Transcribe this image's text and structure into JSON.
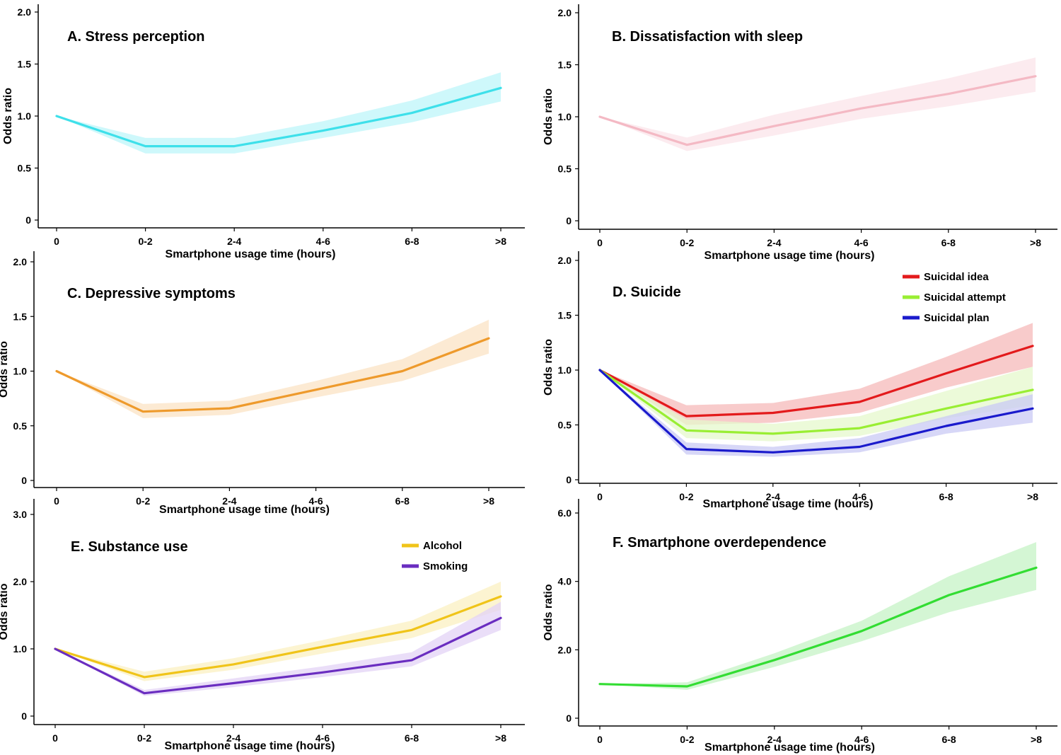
{
  "chart_data": [
    {
      "type": "line",
      "title": "A. Stress perception",
      "xlabel": "Smartphone usage time (hours)",
      "ylabel": "Odds ratio",
      "x": [
        "0",
        "0-2",
        "2-4",
        "4-6",
        "6-8",
        ">8"
      ],
      "yticks": [
        "0",
        "0.5",
        "1.0",
        "1.5",
        "2.0"
      ],
      "ylim": [
        0,
        2.0
      ],
      "legend": "none",
      "grid": false,
      "series": [
        {
          "color": "#3ee0ea",
          "band_color": "#bdf6fa",
          "values": [
            1.0,
            0.71,
            0.71,
            0.86,
            1.03,
            1.27
          ],
          "lower": [
            1.0,
            0.64,
            0.64,
            0.79,
            0.94,
            1.14
          ],
          "upper": [
            1.0,
            0.79,
            0.79,
            0.95,
            1.15,
            1.42
          ]
        }
      ]
    },
    {
      "type": "line",
      "title": "B. Dissatisfaction with sleep",
      "xlabel": "Smartphone usage time (hours)",
      "ylabel": "Odds ratio",
      "x": [
        "0",
        "0-2",
        "2-4",
        "4-6",
        "6-8",
        ">8"
      ],
      "yticks": [
        "0",
        "0.5",
        "1.0",
        "1.5",
        "2.0"
      ],
      "ylim": [
        0,
        2.0
      ],
      "legend": "none",
      "grid": false,
      "series": [
        {
          "color": "#f4b9c4",
          "band_color": "#fbe4e9",
          "values": [
            1.0,
            0.73,
            0.91,
            1.08,
            1.22,
            1.39
          ],
          "lower": [
            1.0,
            0.67,
            0.82,
            0.98,
            1.1,
            1.24
          ],
          "upper": [
            1.0,
            0.8,
            1.02,
            1.2,
            1.37,
            1.57
          ]
        }
      ]
    },
    {
      "type": "line",
      "title": "C. Depressive symptoms",
      "xlabel": "Smartphone usage time (hours)",
      "ylabel": "Odds ratio",
      "x": [
        "0",
        "0-2",
        "2-4",
        "4-6",
        "6-8",
        ">8"
      ],
      "yticks": [
        "0",
        "0.5",
        "1.0",
        "1.5",
        "2.0"
      ],
      "ylim": [
        0,
        2.0
      ],
      "legend": "none",
      "grid": false,
      "series": [
        {
          "color": "#ee9a2c",
          "band_color": "#fbe3c4",
          "values": [
            1.0,
            0.63,
            0.66,
            0.83,
            1.0,
            1.3
          ],
          "lower": [
            1.0,
            0.57,
            0.6,
            0.76,
            0.91,
            1.16
          ],
          "upper": [
            1.0,
            0.7,
            0.73,
            0.91,
            1.11,
            1.47
          ]
        }
      ]
    },
    {
      "type": "line",
      "title": "D. Suicide",
      "xlabel": "Smartphone usage time (hours)",
      "ylabel": "Odds ratio",
      "x": [
        "0",
        "0-2",
        "2-4",
        "4-6",
        "6-8",
        ">8"
      ],
      "yticks": [
        "0",
        "0.5",
        "1.0",
        "1.5",
        "2.0"
      ],
      "ylim": [
        0,
        2.0
      ],
      "legend": "top-right",
      "grid": false,
      "series": [
        {
          "name": "Suicidal idea",
          "color": "#e31a1c",
          "band_color": "#f6b9b9",
          "values": [
            1.0,
            0.58,
            0.61,
            0.71,
            0.97,
            1.22
          ],
          "lower": [
            1.0,
            0.5,
            0.52,
            0.61,
            0.84,
            1.03
          ],
          "upper": [
            1.0,
            0.68,
            0.7,
            0.83,
            1.12,
            1.43
          ]
        },
        {
          "name": "Suicidal attempt",
          "color": "#99ee33",
          "band_color": "#e6f8cc",
          "values": [
            1.0,
            0.45,
            0.42,
            0.47,
            0.65,
            0.82
          ],
          "lower": [
            1.0,
            0.38,
            0.35,
            0.4,
            0.56,
            0.68
          ],
          "upper": [
            1.0,
            0.55,
            0.51,
            0.58,
            0.81,
            1.03
          ]
        },
        {
          "name": "Suicidal plan",
          "color": "#1a1acc",
          "band_color": "#c9c9f4",
          "values": [
            1.0,
            0.28,
            0.25,
            0.3,
            0.49,
            0.65
          ],
          "lower": [
            1.0,
            0.23,
            0.21,
            0.25,
            0.42,
            0.52
          ],
          "upper": [
            1.0,
            0.34,
            0.3,
            0.38,
            0.58,
            0.78
          ]
        }
      ]
    },
    {
      "type": "line",
      "title": "E. Substance use",
      "xlabel": "Smartphone usage time (hours)",
      "ylabel": "Odds ratio",
      "x": [
        "0",
        "0-2",
        "2-4",
        "4-6",
        "6-8",
        ">8"
      ],
      "yticks": [
        "0",
        "1.0",
        "2.0",
        "3.0"
      ],
      "ylim": [
        0,
        3.0
      ],
      "legend": "top-right",
      "grid": false,
      "series": [
        {
          "name": "Alcohol",
          "color": "#f0c419",
          "band_color": "#fbf0c2",
          "values": [
            1.0,
            0.58,
            0.77,
            1.03,
            1.28,
            1.78
          ],
          "lower": [
            1.0,
            0.52,
            0.69,
            0.93,
            1.16,
            1.58
          ],
          "upper": [
            1.0,
            0.66,
            0.86,
            1.13,
            1.42,
            2.0
          ]
        },
        {
          "name": "Smoking",
          "color": "#6a2dc0",
          "band_color": "#e3d3f6",
          "values": [
            1.0,
            0.34,
            0.49,
            0.65,
            0.83,
            1.46
          ],
          "lower": [
            1.0,
            0.3,
            0.43,
            0.58,
            0.74,
            1.28
          ],
          "upper": [
            1.0,
            0.39,
            0.56,
            0.74,
            0.95,
            1.7
          ]
        }
      ]
    },
    {
      "type": "line",
      "title": "F. Smartphone overdependence",
      "xlabel": "Smartphone usage time (hours)",
      "ylabel": "Odds ratio",
      "x": [
        "0",
        "0-2",
        "2-4",
        "4-6",
        "6-8",
        ">8"
      ],
      "yticks": [
        "0",
        "2.0",
        "4.0",
        "6.0"
      ],
      "ylim": [
        0,
        6.0
      ],
      "legend": "none",
      "grid": false,
      "series": [
        {
          "color": "#33dd33",
          "band_color": "#c6f3c6",
          "values": [
            1.0,
            0.93,
            1.7,
            2.55,
            3.6,
            4.4
          ],
          "lower": [
            1.0,
            0.83,
            1.5,
            2.25,
            3.1,
            3.75
          ],
          "upper": [
            1.0,
            1.05,
            1.9,
            2.85,
            4.15,
            5.15
          ]
        }
      ]
    }
  ]
}
